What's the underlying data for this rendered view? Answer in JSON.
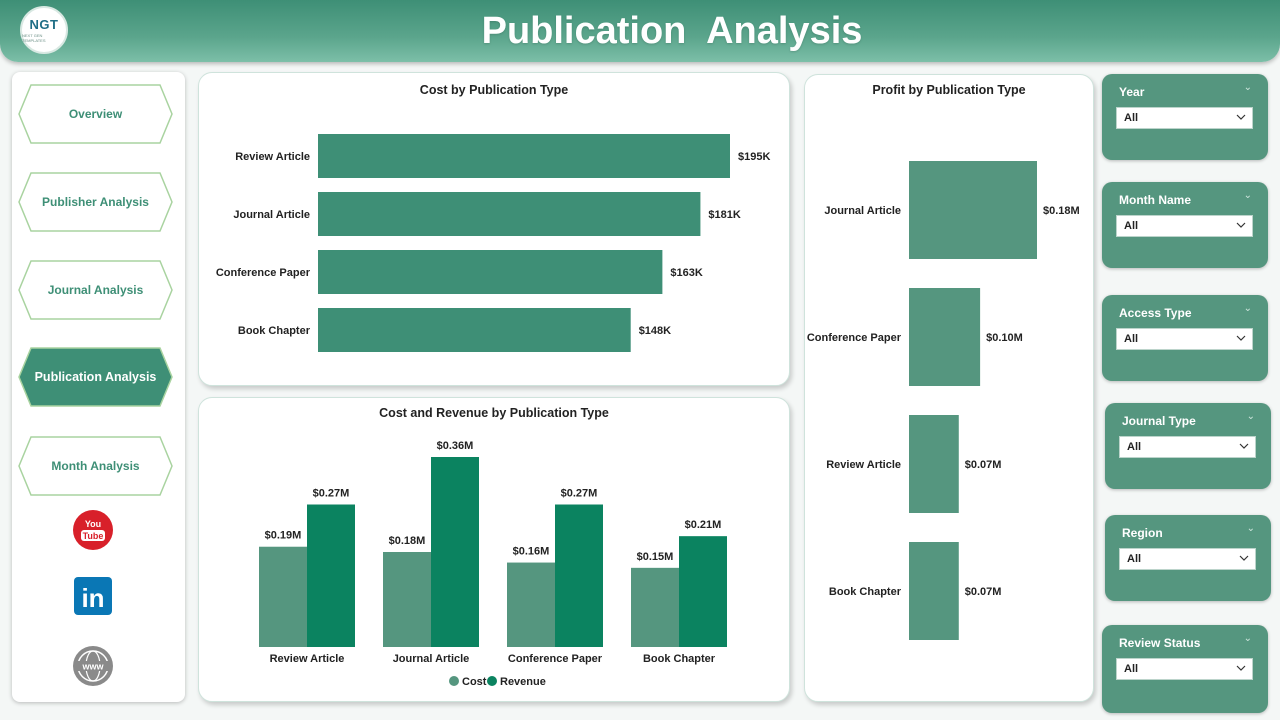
{
  "header": {
    "title": "Publication  Analysis",
    "logo_text": "NGT",
    "logo_sub": "NEXT GEN TEMPLATES"
  },
  "nav": [
    {
      "label": "Overview",
      "active": false
    },
    {
      "label": "Publisher Analysis",
      "active": false
    },
    {
      "label": "Journal Analysis",
      "active": false
    },
    {
      "label": "Publication Analysis",
      "active": true
    },
    {
      "label": "Month Analysis",
      "active": false
    }
  ],
  "social": [
    {
      "icon": "youtube-icon",
      "text": "You Tube"
    },
    {
      "icon": "linkedin-icon",
      "text": "in"
    },
    {
      "icon": "globe-icon",
      "text": "www"
    }
  ],
  "colors": {
    "accent": "#3e8f76",
    "cost": "#55967f",
    "revenue": "#0b8360",
    "header": "#5ba58c"
  },
  "slicers": [
    {
      "label": "Year",
      "value": "All"
    },
    {
      "label": "Month Name",
      "value": "All"
    },
    {
      "label": "Access Type",
      "value": "All"
    },
    {
      "label": "Journal Type",
      "value": "All"
    },
    {
      "label": "Region",
      "value": "All"
    },
    {
      "label": "Review Status",
      "value": "All"
    }
  ],
  "chart_data": [
    {
      "type": "bar",
      "orientation": "horizontal",
      "title": "Cost by Publication Type",
      "categories": [
        "Review Article",
        "Journal Article",
        "Conference Paper",
        "Book Chapter"
      ],
      "values": [
        195,
        181,
        163,
        148
      ],
      "labels": [
        "$195K",
        "$181K",
        "$163K",
        "$148K"
      ],
      "unit": "K",
      "xlim": [
        0,
        195
      ],
      "grid": false,
      "legend": "none"
    },
    {
      "type": "bar",
      "orientation": "vertical",
      "title": "Cost and Revenue by Publication Type",
      "categories": [
        "Review Article",
        "Journal Article",
        "Conference Paper",
        "Book Chapter"
      ],
      "series": [
        {
          "name": "Cost",
          "values": [
            0.19,
            0.18,
            0.16,
            0.15
          ],
          "labels": [
            "$0.19M",
            "$0.18M",
            "$0.16M",
            "$0.15M"
          ]
        },
        {
          "name": "Revenue",
          "values": [
            0.27,
            0.36,
            0.27,
            0.21
          ],
          "labels": [
            "$0.27M",
            "$0.36M",
            "$0.27M",
            "$0.21M"
          ]
        }
      ],
      "ylim": [
        0,
        0.36
      ],
      "grid": false,
      "legend": "bottom-center"
    },
    {
      "type": "bar",
      "orientation": "horizontal",
      "title": "Profit by Publication Type",
      "categories": [
        "Journal Article",
        "Conference Paper",
        "Review Article",
        "Book Chapter"
      ],
      "values": [
        0.18,
        0.1,
        0.07,
        0.07
      ],
      "labels": [
        "$0.18M",
        "$0.10M",
        "$0.07M",
        "$0.07M"
      ],
      "xlim": [
        0,
        0.18
      ],
      "grid": false,
      "legend": "none"
    }
  ]
}
